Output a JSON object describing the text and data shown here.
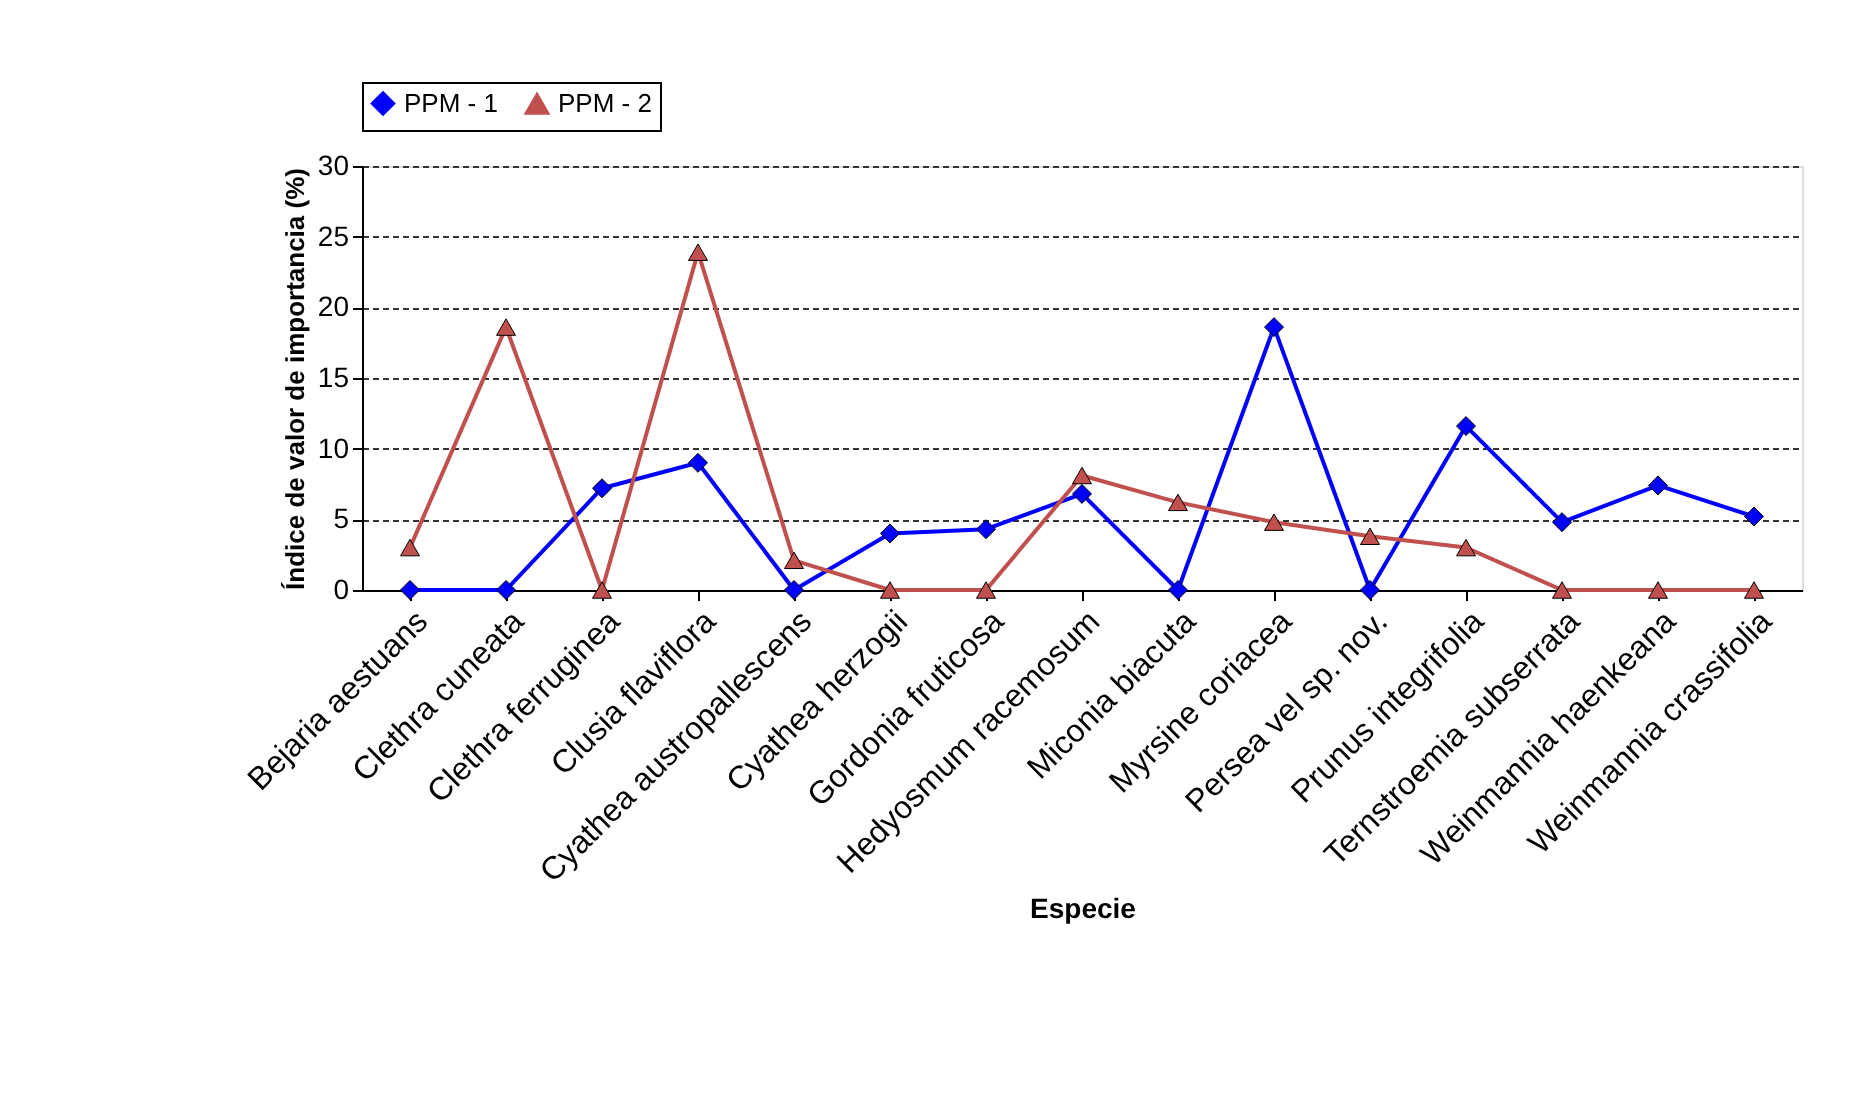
{
  "chart_data": {
    "type": "line",
    "xlabel": "Especie",
    "ylabel": "Índice de valor de importancia (%)",
    "categories": [
      "Bejaria aestuans",
      "Clethra cuneata",
      "Clethra ferruginea",
      "Clusia flaviflora",
      "Cyathea austropallescens",
      "Cyathea herzogii",
      "Gordonia fruticosa",
      "Hedyosmum racemosum",
      "Miconia biacuta",
      "Myrsine coriacea",
      "Persea vel sp. nov.",
      "Prunus integrifolia",
      "Ternstroemia subserrata",
      "Weinmannia  haenkeana",
      "Weinmannia crassifolia"
    ],
    "series": [
      {
        "name": "PPM - 1",
        "color": "#0000ff",
        "marker": "diamond",
        "values": [
          0,
          0,
          7.2,
          9,
          0,
          4,
          4.3,
          6.8,
          0,
          18.6,
          0,
          11.6,
          4.8,
          7.4,
          5.2
        ]
      },
      {
        "name": "PPM - 2",
        "color": "#c0504d",
        "marker": "triangle",
        "values": [
          3,
          18.6,
          0,
          23.9,
          2.1,
          0,
          0,
          8.1,
          6.2,
          4.8,
          3.8,
          3,
          0,
          0,
          0
        ]
      }
    ],
    "ylim": [
      0,
      30
    ],
    "yticks": [
      0,
      5,
      10,
      15,
      20,
      25,
      30
    ],
    "grid": "y",
    "legend": "top",
    "line_style": "solid"
  }
}
